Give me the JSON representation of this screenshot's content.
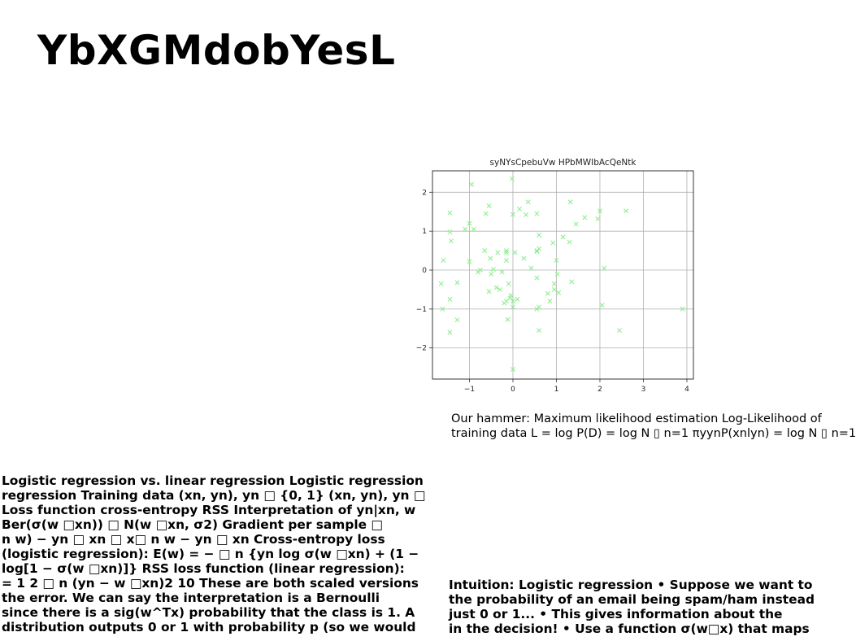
{
  "slide": {
    "title": "YbXGMdobYesL",
    "caption_lines": [
      "Our hammer: Maximum likelihood estimation Log-Likelihood of",
      "training data L = log P(D) = log N ▯ n=1 πyynP(xnlyn) = log N ▯ n=1"
    ],
    "left_block_lines": [
      "Logistic regression vs. linear regression Logistic regression",
      "regression Training data (xn, yn), yn □ {0, 1} (xn, yn), yn □",
      "Loss function cross-entropy RSS Interpretation of yn|xn, w",
      "Ber(σ(w □xn)) □ N(w □xn, σ2) Gradient per sample □",
      "n w) − yn □ xn □ x□ n w − yn □ xn Cross-entropy loss",
      "(logistic regression): E(w) = − □ n {yn log σ(w □xn) + (1 −",
      "log[1 − σ(w □xn)]} RSS loss function (linear regression):",
      "= 1 2 □ n (yn − w □xn)2 10 These are both scaled versions",
      "the error. We can say the interpretation is a Bernoulli",
      "since there is a sig(w^Tx) probability that the class is 1. A",
      "distribution outputs 0 or 1 with probability p (so we would"
    ],
    "right_block_lines": [
      "Intuition: Logistic regression • Suppose we want to",
      "the probability of an email being spam/ham instead",
      "just 0 or 1... • This gives information about the",
      "in the decision! • Use a function σ(w□x) that maps"
    ]
  },
  "chart_data": {
    "type": "scatter",
    "title": "syNYsCpebuVw HPbMWIbAcQeNtk",
    "xlabel": "",
    "ylabel": "",
    "xlim": [
      -1.85,
      4.15
    ],
    "ylim": [
      -2.8,
      2.55
    ],
    "xticks": [
      -1,
      0,
      1,
      2,
      3,
      4
    ],
    "yticks": [
      -2,
      -1,
      0,
      1,
      2
    ],
    "xtick_labels": [
      "−1",
      "0",
      "1",
      "2",
      "3",
      "4"
    ],
    "ytick_labels": [
      "−2",
      "−1",
      "0",
      "1",
      "2"
    ],
    "grid": true,
    "marker": "x",
    "color": "#90ee90",
    "series": [
      {
        "x": [
          -0.02,
          -0.95,
          -1.45,
          -1.1,
          -1.0,
          -0.55,
          -0.62,
          -1.42,
          -1.45,
          -1.0,
          -0.9,
          -1.6,
          -1.28,
          -1.45,
          -1.65,
          -1.28,
          -1.62,
          -1.45,
          -0.52,
          -0.35,
          -0.55,
          -0.38,
          -0.5,
          -0.45,
          -0.3,
          -0.25,
          -0.15,
          -0.15,
          -0.15,
          -0.1,
          -0.15,
          -0.05,
          -0.2,
          -0.12,
          -0.06,
          0.0,
          0.05,
          0.15,
          0.1,
          0.0,
          0.25,
          0.35,
          0.3,
          0.42,
          0.55,
          0.6,
          0.6,
          0.55,
          0.55,
          0.6,
          0.55,
          0.6,
          0.8,
          0.85,
          0.95,
          0.92,
          0.95,
          1.0,
          1.02,
          1.05,
          1.15,
          1.3,
          1.32,
          1.35,
          1.45,
          1.65,
          1.95,
          2.0,
          2.05,
          2.1,
          2.45,
          2.6,
          3.9,
          0.0,
          0.55,
          -0.65,
          -0.75,
          -0.8,
          0.0
        ],
        "y": [
          2.35,
          2.2,
          1.47,
          1.05,
          1.2,
          1.65,
          1.45,
          0.75,
          0.98,
          0.22,
          1.05,
          0.25,
          -1.28,
          -1.6,
          -0.35,
          -0.32,
          -1.0,
          -0.75,
          0.3,
          0.45,
          -0.55,
          -0.45,
          -0.1,
          0.02,
          -0.5,
          -0.05,
          0.45,
          0.25,
          0.5,
          -0.35,
          -0.8,
          -0.65,
          -0.85,
          -1.27,
          -0.72,
          1.43,
          0.45,
          1.57,
          -0.75,
          -0.8,
          0.3,
          1.75,
          1.42,
          0.05,
          1.45,
          0.9,
          0.55,
          0.48,
          -0.2,
          -0.95,
          -1.0,
          -1.55,
          -0.6,
          -0.8,
          -0.35,
          0.7,
          -0.5,
          0.25,
          -0.1,
          -0.58,
          0.85,
          0.72,
          1.75,
          -0.3,
          1.18,
          1.35,
          1.32,
          1.52,
          -0.9,
          0.05,
          -1.55,
          1.52,
          -1.0,
          -2.55,
          0.5,
          0.5,
          0.0,
          -0.05,
          -0.95
        ]
      }
    ]
  }
}
